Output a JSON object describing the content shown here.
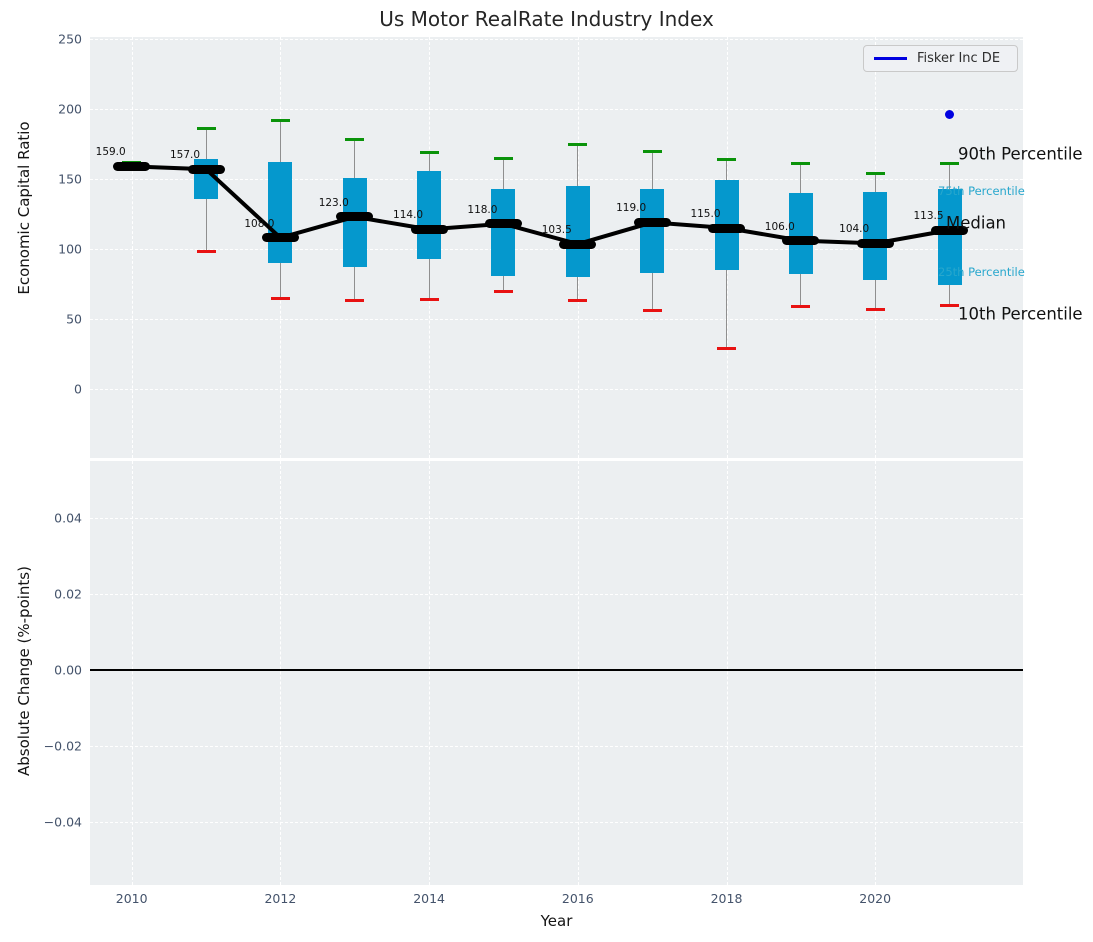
{
  "title": "Us Motor RealRate Industry Index",
  "legend": {
    "label": "Fisker Inc DE"
  },
  "axes": {
    "top": {
      "ylabel": "Economic Capital Ratio",
      "yticks": [
        "250",
        "200",
        "150",
        "100",
        "50",
        "0"
      ]
    },
    "bottom": {
      "ylabel": "Absolute Change (%-points)",
      "yticks": [
        "0.04",
        "0.02",
        "0.00",
        "−0.02",
        "−0.04"
      ]
    },
    "x": {
      "label": "Year",
      "ticks": [
        "2010",
        "2012",
        "2014",
        "2016",
        "2018",
        "2020"
      ]
    }
  },
  "annotations": {
    "p90": "90th Percentile",
    "p75": "75th Percentile",
    "median": "Median",
    "p25": "25th Percentile",
    "p10": "10th Percentile"
  },
  "colors": {
    "panel_bg": "#eceff1",
    "box_fill": "#0598cd",
    "whisker_line": "#8f8f8f",
    "cap_high_green": "#0a930a",
    "cap_low_red": "#e81212",
    "median_black": "#000000",
    "company_blue": "#0000e0",
    "annotation_cyan": "#28a7cd",
    "tick_text": "#44536b"
  },
  "chart_data": {
    "type": "boxplot+line",
    "title": "Us Motor RealRate Industry Index",
    "xlabel": "Year",
    "ylabel_top": "Economic Capital Ratio",
    "ylabel_bottom": "Absolute Change (%-points)",
    "ylim_top": [
      -49,
      251
    ],
    "ylim_bottom": [
      -0.055,
      0.055
    ],
    "grid": true,
    "legend_position": "upper right",
    "years": [
      2010,
      2011,
      2012,
      2013,
      2014,
      2015,
      2016,
      2017,
      2018,
      2019,
      2020,
      2021
    ],
    "series": [
      {
        "name": "90th Percentile",
        "values": [
          162,
          186,
          192,
          178,
          169,
          165,
          175,
          170,
          164,
          161,
          154,
          161
        ]
      },
      {
        "name": "75th Percentile",
        "values": [
          159.5,
          164,
          162,
          151,
          156,
          143,
          145,
          143,
          149,
          140,
          141,
          143
        ]
      },
      {
        "name": "Median",
        "values": [
          159,
          157,
          108,
          123,
          114,
          118,
          103.5,
          119,
          115,
          106,
          104,
          113.5
        ]
      },
      {
        "name": "25th Percentile",
        "values": [
          158.5,
          136,
          90,
          87,
          93,
          81,
          80,
          83,
          85,
          82,
          78,
          74
        ]
      },
      {
        "name": "10th Percentile",
        "values": [
          157,
          98,
          65,
          63,
          64,
          70,
          63,
          56,
          29,
          59,
          57,
          60
        ]
      }
    ],
    "median_labels": [
      "159.0",
      "157.0",
      "108.0",
      "123.0",
      "114.0",
      "118.0",
      "103.5",
      "119.0",
      "115.0",
      "106.0",
      "104.0",
      "113.5"
    ],
    "company_point": {
      "name": "Fisker Inc DE",
      "year": 2021,
      "value": 196
    },
    "bottom_panel_zero_line": 0.0
  }
}
